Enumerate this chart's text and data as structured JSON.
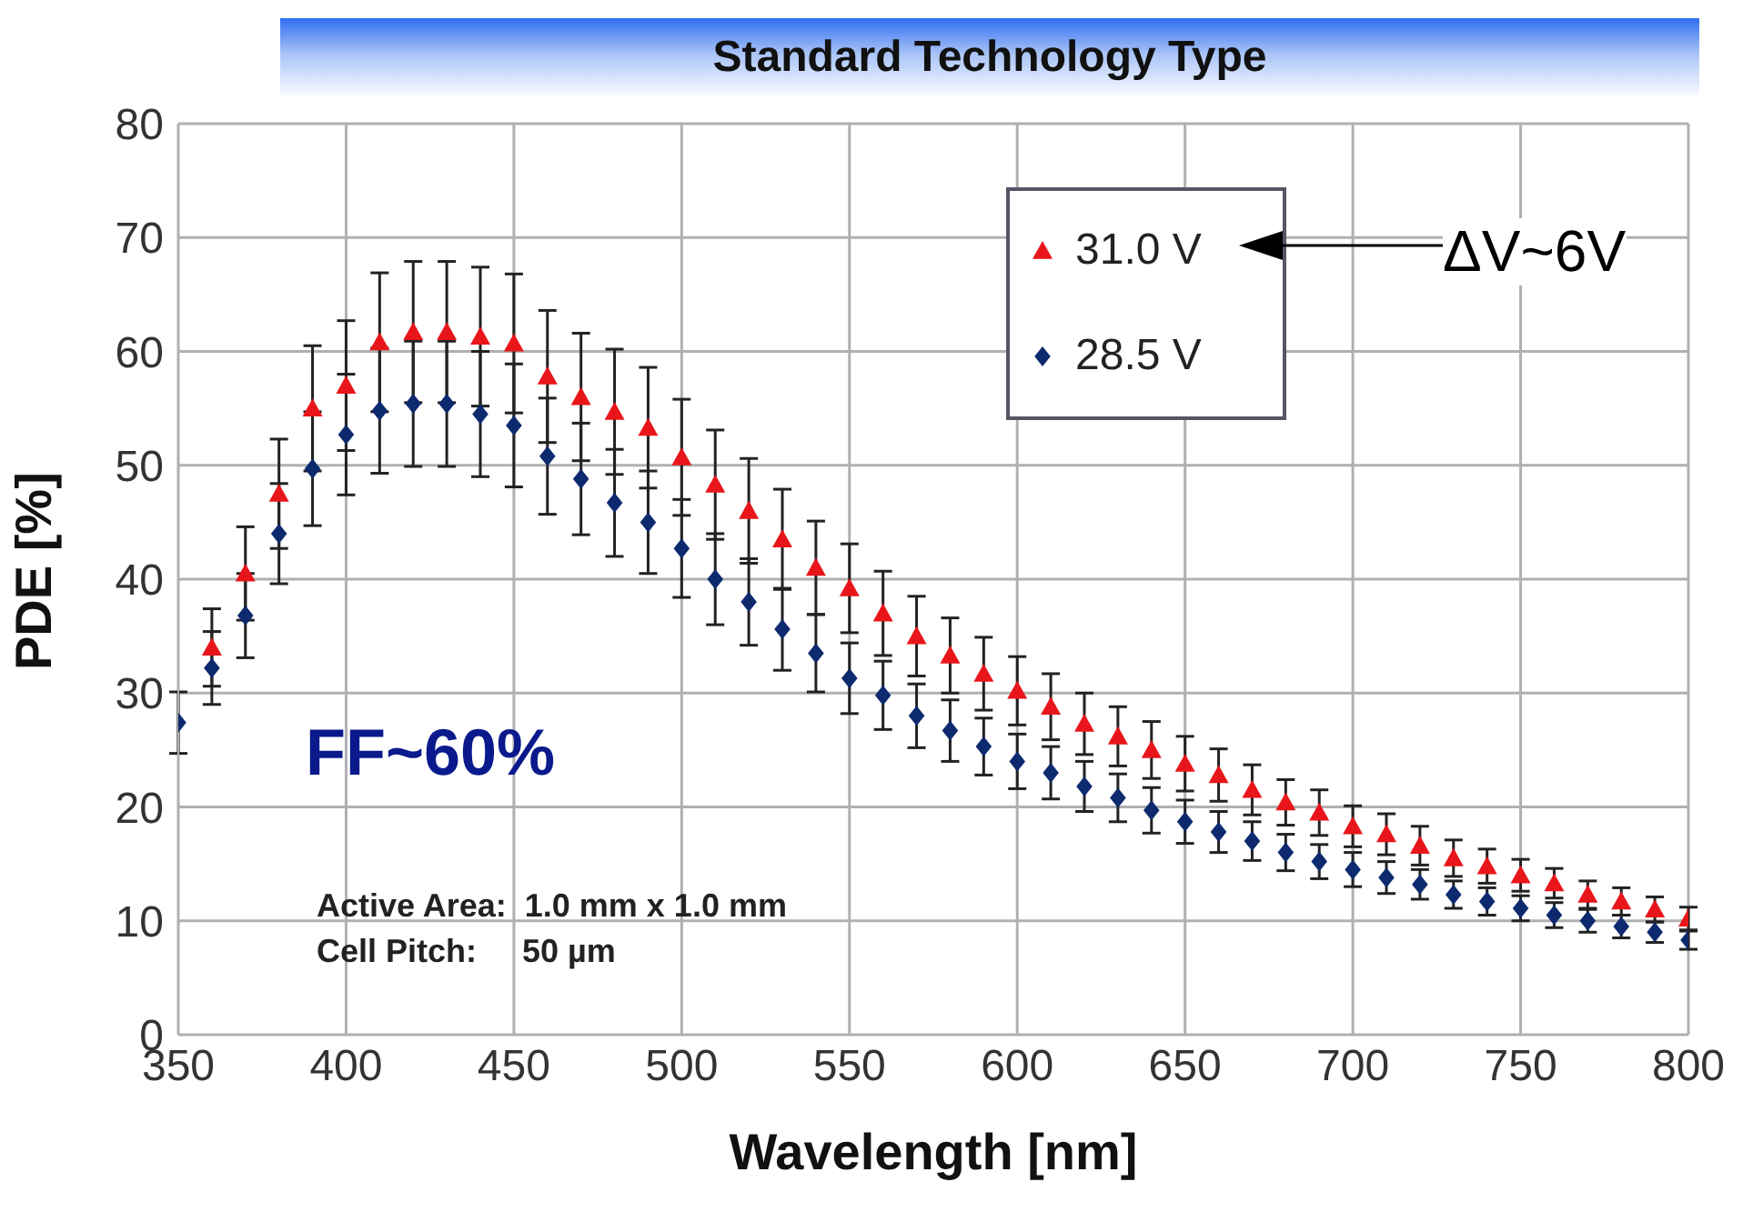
{
  "chart_data": {
    "type": "scatter",
    "title": "Standard Technology Type",
    "xlabel": "Wavelength [nm]",
    "ylabel": "PDE [%]",
    "x": [
      350,
      360,
      370,
      380,
      390,
      400,
      410,
      420,
      430,
      440,
      450,
      460,
      470,
      480,
      490,
      500,
      510,
      520,
      530,
      540,
      550,
      560,
      570,
      580,
      590,
      600,
      610,
      620,
      630,
      640,
      650,
      660,
      670,
      680,
      690,
      700,
      710,
      720,
      730,
      740,
      750,
      760,
      770,
      780,
      790,
      800
    ],
    "series": [
      {
        "name": "31.0 V",
        "color": "#e8161b",
        "marker": "triangle",
        "values": [
          null,
          34,
          40.5,
          47.5,
          55,
          57,
          60.8,
          61.7,
          61.7,
          61.3,
          60.7,
          57.8,
          56,
          54.7,
          53.3,
          50.7,
          48.3,
          46,
          43.5,
          41,
          39.2,
          37,
          35,
          33.3,
          31.7,
          30.2,
          28.8,
          27.3,
          26.2,
          25,
          23.8,
          22.8,
          21.5,
          20.4,
          19.5,
          18.3,
          17.6,
          16.6,
          15.5,
          14.8,
          14,
          13.3,
          12.3,
          11.7,
          11,
          10.2
        ],
        "errors": [
          null,
          3.4,
          4.1,
          4.8,
          5.5,
          5.7,
          6.1,
          6.2,
          6.2,
          6.1,
          6.1,
          5.8,
          5.6,
          5.5,
          5.3,
          5.1,
          4.8,
          4.6,
          4.4,
          4.1,
          3.9,
          3.7,
          3.5,
          3.3,
          3.2,
          3.0,
          2.9,
          2.7,
          2.6,
          2.5,
          2.4,
          2.3,
          2.2,
          2.0,
          2.0,
          1.8,
          1.8,
          1.7,
          1.6,
          1.5,
          1.4,
          1.3,
          1.2,
          1.2,
          1.1,
          1.0
        ]
      },
      {
        "name": "28.5 V",
        "color": "#0d2a6e",
        "marker": "diamond",
        "values": [
          27.4,
          32.2,
          36.8,
          44,
          49.7,
          52.7,
          54.8,
          55.4,
          55.4,
          54.5,
          53.5,
          50.8,
          48.8,
          46.7,
          45,
          42.7,
          40,
          38,
          35.6,
          33.5,
          31.3,
          29.8,
          28,
          26.7,
          25.3,
          24,
          23,
          21.8,
          20.8,
          19.7,
          18.7,
          17.8,
          17,
          16,
          15.2,
          14.5,
          13.8,
          13.2,
          12.3,
          11.7,
          11.1,
          10.5,
          10,
          9.5,
          9,
          8.3
        ],
        "errors": [
          2.7,
          3.2,
          3.7,
          4.4,
          5.0,
          5.3,
          5.5,
          5.5,
          5.5,
          5.5,
          5.4,
          5.1,
          4.9,
          4.7,
          4.5,
          4.3,
          4.0,
          3.8,
          3.6,
          3.4,
          3.1,
          3.0,
          2.8,
          2.7,
          2.5,
          2.4,
          2.3,
          2.2,
          2.1,
          2.0,
          1.9,
          1.8,
          1.7,
          1.6,
          1.5,
          1.5,
          1.4,
          1.3,
          1.2,
          1.2,
          1.1,
          1.1,
          1.0,
          1.0,
          0.9,
          0.8
        ]
      }
    ],
    "xlim": [
      350,
      800
    ],
    "xticks": [
      350,
      400,
      450,
      500,
      550,
      600,
      650,
      700,
      750,
      800
    ],
    "ylim": [
      0,
      80
    ],
    "yticks": [
      0,
      10,
      20,
      30,
      40,
      50,
      60,
      70,
      80
    ],
    "grid": true,
    "legend": "top right",
    "annotations": [
      "ΔV~6V",
      "FF~60%",
      "Active Area:  1.0 mm x 1.0 mm",
      "Cell Pitch:     50 µm"
    ]
  }
}
